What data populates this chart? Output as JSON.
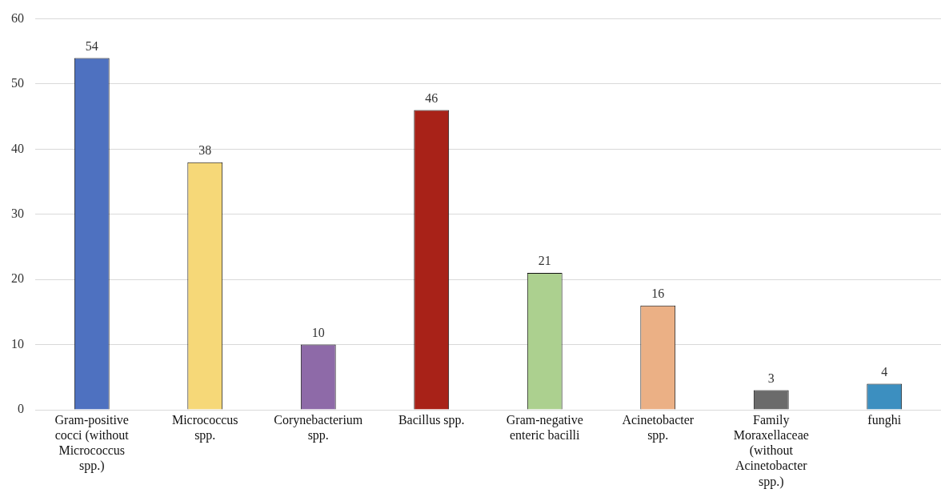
{
  "chart_data": {
    "type": "bar",
    "categories": [
      "Gram-positive cocci (without Micrococcus spp.)",
      "Micrococcus spp.",
      "Corynebacterium spp.",
      "Bacillus spp.",
      "Gram-negative enteric bacilli",
      "Acinetobacter spp.",
      "Family Moraxellaceae (without Acinetobacter spp.)",
      "funghi"
    ],
    "values": [
      54,
      38,
      10,
      46,
      21,
      16,
      3,
      4
    ],
    "colors": [
      "#4e71c0",
      "#f6d878",
      "#8e6aa8",
      "#a82218",
      "#acd08f",
      "#ebb085",
      "#6b6b6b",
      "#3c8fc0"
    ],
    "ylim": [
      0,
      60
    ],
    "yticks": [
      0,
      10,
      20,
      30,
      40,
      50,
      60
    ],
    "grid": "y",
    "data_labels": true,
    "legend": false
  }
}
